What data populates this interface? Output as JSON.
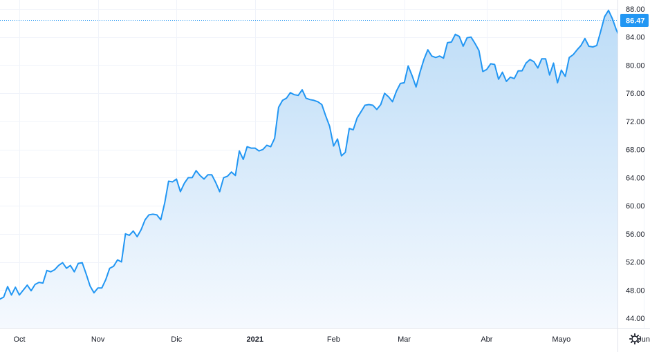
{
  "chart_data": {
    "type": "area",
    "title": "",
    "xlabel": "",
    "ylabel": "",
    "x_ticks": [
      {
        "label": "Oct",
        "t": 0.0,
        "bold": false
      },
      {
        "label": "Nov",
        "t": 1.0,
        "bold": false
      },
      {
        "label": "Dic",
        "t": 2.0,
        "bold": false
      },
      {
        "label": "2021",
        "t": 3.0,
        "bold": true
      },
      {
        "label": "Feb",
        "t": 4.0,
        "bold": false
      },
      {
        "label": "Mar",
        "t": 4.9,
        "bold": false
      },
      {
        "label": "Abr",
        "t": 5.95,
        "bold": false
      },
      {
        "label": "Mayo",
        "t": 6.9,
        "bold": false
      },
      {
        "label": "Jun",
        "t": 7.95,
        "bold": false
      }
    ],
    "y_ticks": [
      44,
      48,
      52,
      56,
      60,
      64,
      68,
      72,
      76,
      80,
      84,
      88
    ],
    "y_tick_labels": [
      "44.00",
      "48.00",
      "52.00",
      "56.00",
      "60.00",
      "64.00",
      "68.00",
      "72.00",
      "76.00",
      "80.00",
      "84.00",
      "88.00"
    ],
    "ylim": [
      42.1,
      89.9
    ],
    "xlim": [
      -0.25,
      8.55
    ],
    "grid": true,
    "last_value": 86.47,
    "last_value_label": "86.47",
    "colors": {
      "line": "#2196f3",
      "area_top": "#bcdcf7",
      "area_bottom": "#f5f9fe",
      "grid": "#f0f3fa",
      "last_price_line": "#2196f3",
      "last_price_badge": "#2196f3",
      "axis_text": "#131722"
    },
    "series": [
      {
        "points": [
          [
            -0.25,
            46.7
          ],
          [
            -0.2,
            47.0
          ],
          [
            -0.15,
            48.5
          ],
          [
            -0.1,
            47.3
          ],
          [
            -0.05,
            48.4
          ],
          [
            0.0,
            47.3
          ],
          [
            0.05,
            48.0
          ],
          [
            0.1,
            48.7
          ],
          [
            0.15,
            47.9
          ],
          [
            0.2,
            48.8
          ],
          [
            0.25,
            49.1
          ],
          [
            0.3,
            49.0
          ],
          [
            0.35,
            50.8
          ],
          [
            0.4,
            50.6
          ],
          [
            0.45,
            50.9
          ],
          [
            0.5,
            51.5
          ],
          [
            0.55,
            51.9
          ],
          [
            0.6,
            51.1
          ],
          [
            0.65,
            51.5
          ],
          [
            0.7,
            50.6
          ],
          [
            0.75,
            51.8
          ],
          [
            0.8,
            51.9
          ],
          [
            0.85,
            50.3
          ],
          [
            0.9,
            48.6
          ],
          [
            0.95,
            47.6
          ],
          [
            1.0,
            48.3
          ],
          [
            1.05,
            48.3
          ],
          [
            1.1,
            49.5
          ],
          [
            1.15,
            51.1
          ],
          [
            1.2,
            51.4
          ],
          [
            1.25,
            52.3
          ],
          [
            1.3,
            52.0
          ],
          [
            1.35,
            56.0
          ],
          [
            1.4,
            55.8
          ],
          [
            1.45,
            56.4
          ],
          [
            1.5,
            55.6
          ],
          [
            1.55,
            56.6
          ],
          [
            1.6,
            58.0
          ],
          [
            1.65,
            58.7
          ],
          [
            1.7,
            58.8
          ],
          [
            1.75,
            58.7
          ],
          [
            1.8,
            58.0
          ],
          [
            1.85,
            60.4
          ],
          [
            1.9,
            63.5
          ],
          [
            1.95,
            63.4
          ],
          [
            2.0,
            63.8
          ],
          [
            2.05,
            62.0
          ],
          [
            2.1,
            63.2
          ],
          [
            2.15,
            64.0
          ],
          [
            2.2,
            64.0
          ],
          [
            2.25,
            65.0
          ],
          [
            2.3,
            64.3
          ],
          [
            2.35,
            63.8
          ],
          [
            2.4,
            64.4
          ],
          [
            2.45,
            64.4
          ],
          [
            2.5,
            63.3
          ],
          [
            2.55,
            62.0
          ],
          [
            2.6,
            64.0
          ],
          [
            2.65,
            64.2
          ],
          [
            2.7,
            64.8
          ],
          [
            2.75,
            64.3
          ],
          [
            2.8,
            67.8
          ],
          [
            2.85,
            66.6
          ],
          [
            2.9,
            68.4
          ],
          [
            2.95,
            68.2
          ],
          [
            3.0,
            68.2
          ],
          [
            3.05,
            67.8
          ],
          [
            3.1,
            68.0
          ],
          [
            3.15,
            68.6
          ],
          [
            3.2,
            68.4
          ],
          [
            3.25,
            69.6
          ],
          [
            3.3,
            74.0
          ],
          [
            3.35,
            75.0
          ],
          [
            3.4,
            75.3
          ],
          [
            3.45,
            76.1
          ],
          [
            3.5,
            75.8
          ],
          [
            3.55,
            75.7
          ],
          [
            3.6,
            76.5
          ],
          [
            3.65,
            75.3
          ],
          [
            3.7,
            75.1
          ],
          [
            3.75,
            75.0
          ],
          [
            3.8,
            74.8
          ],
          [
            3.85,
            74.4
          ],
          [
            3.9,
            72.8
          ],
          [
            3.95,
            71.3
          ],
          [
            4.0,
            68.5
          ],
          [
            4.05,
            69.5
          ],
          [
            4.1,
            67.1
          ],
          [
            4.15,
            67.6
          ],
          [
            4.2,
            71.0
          ],
          [
            4.25,
            70.8
          ],
          [
            4.3,
            72.5
          ],
          [
            4.35,
            73.4
          ],
          [
            4.4,
            74.3
          ],
          [
            4.45,
            74.4
          ],
          [
            4.5,
            74.3
          ],
          [
            4.55,
            73.7
          ],
          [
            4.6,
            74.4
          ],
          [
            4.65,
            76.0
          ],
          [
            4.7,
            75.5
          ],
          [
            4.75,
            74.8
          ],
          [
            4.8,
            76.3
          ],
          [
            4.85,
            77.4
          ],
          [
            4.9,
            77.5
          ],
          [
            4.95,
            79.9
          ],
          [
            5.0,
            78.5
          ],
          [
            5.05,
            76.9
          ],
          [
            5.1,
            79.0
          ],
          [
            5.15,
            80.8
          ],
          [
            5.2,
            82.2
          ],
          [
            5.25,
            81.3
          ],
          [
            5.3,
            81.1
          ],
          [
            5.35,
            81.3
          ],
          [
            5.4,
            81.0
          ],
          [
            5.45,
            83.2
          ],
          [
            5.5,
            83.3
          ],
          [
            5.55,
            84.4
          ],
          [
            5.6,
            84.1
          ],
          [
            5.65,
            82.7
          ],
          [
            5.7,
            83.9
          ],
          [
            5.75,
            84.0
          ],
          [
            5.8,
            83.1
          ],
          [
            5.85,
            82.1
          ],
          [
            5.9,
            79.1
          ],
          [
            5.95,
            79.4
          ],
          [
            6.0,
            80.2
          ],
          [
            6.05,
            80.1
          ],
          [
            6.1,
            78.0
          ],
          [
            6.15,
            79.0
          ],
          [
            6.2,
            77.7
          ],
          [
            6.25,
            78.3
          ],
          [
            6.3,
            78.1
          ],
          [
            6.35,
            79.2
          ],
          [
            6.4,
            79.2
          ],
          [
            6.45,
            80.3
          ],
          [
            6.5,
            80.8
          ],
          [
            6.55,
            80.5
          ],
          [
            6.6,
            79.6
          ],
          [
            6.65,
            80.9
          ],
          [
            6.7,
            80.9
          ],
          [
            6.75,
            78.6
          ],
          [
            6.8,
            80.3
          ],
          [
            6.85,
            77.5
          ],
          [
            6.9,
            79.3
          ],
          [
            6.95,
            78.4
          ],
          [
            7.0,
            81.1
          ],
          [
            7.05,
            81.5
          ],
          [
            7.1,
            82.2
          ],
          [
            7.15,
            82.8
          ],
          [
            7.2,
            83.8
          ],
          [
            7.25,
            82.7
          ],
          [
            7.3,
            82.6
          ],
          [
            7.35,
            82.8
          ],
          [
            7.4,
            84.8
          ],
          [
            7.45,
            86.9
          ],
          [
            7.5,
            87.8
          ],
          [
            7.55,
            86.6
          ],
          [
            7.6,
            85.0
          ],
          [
            7.65,
            83.8
          ],
          [
            7.7,
            84.8
          ],
          [
            7.75,
            87.3
          ],
          [
            7.8,
            88.1
          ],
          [
            7.85,
            86.8
          ],
          [
            7.9,
            86.0
          ],
          [
            7.95,
            86.47
          ]
        ]
      }
    ]
  },
  "ui": {
    "settings_icon": "gear-icon"
  }
}
